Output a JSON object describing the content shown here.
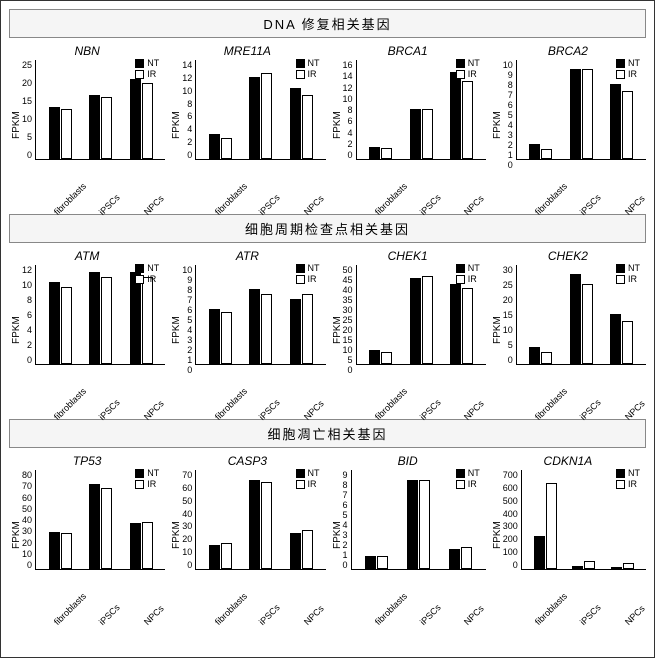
{
  "global": {
    "ylabel": "FPKM",
    "categories": [
      "fibroblasts",
      "iPSCs",
      "NPCs"
    ],
    "legend": [
      "NT",
      "IR"
    ],
    "colors": {
      "NT": "#000000",
      "IR": "#ffffff",
      "border": "#000000"
    },
    "fonts": {
      "title_size": 12,
      "axis_size": 10,
      "tick_size": 9
    }
  },
  "sections": [
    {
      "title": "DNA 修复相关基因",
      "charts": [
        {
          "name": "NBN",
          "ymax": 25,
          "ystep": 5,
          "values_nt": [
            13,
            16,
            20
          ],
          "values_ir": [
            12.5,
            15.5,
            19
          ]
        },
        {
          "name": "MRE11A",
          "ymax": 14,
          "ystep": 2,
          "values_nt": [
            3.5,
            11.5,
            10
          ],
          "values_ir": [
            3,
            12,
            9
          ]
        },
        {
          "name": "BRCA1",
          "ymax": 16,
          "ystep": 2,
          "values_nt": [
            2,
            8,
            14
          ],
          "values_ir": [
            1.8,
            8,
            12.5
          ]
        },
        {
          "name": "BRCA2",
          "ymax": 10,
          "ystep": 1,
          "values_nt": [
            1.5,
            9,
            7.5
          ],
          "values_ir": [
            1,
            9,
            6.8
          ]
        }
      ]
    },
    {
      "title": "细胞周期检查点相关基因",
      "charts": [
        {
          "name": "ATM",
          "ymax": 12,
          "ystep": 2,
          "values_nt": [
            9.8,
            11,
            11
          ],
          "values_ir": [
            9.2,
            10.5,
            10.5
          ]
        },
        {
          "name": "ATR",
          "ymax": 10,
          "ystep": 1,
          "values_nt": [
            5.5,
            7.5,
            6.5
          ],
          "values_ir": [
            5.2,
            7,
            7
          ]
        },
        {
          "name": "CHEK1",
          "ymax": 50,
          "ystep": 5,
          "values_nt": [
            7,
            43,
            40
          ],
          "values_ir": [
            6,
            44,
            38
          ]
        },
        {
          "name": "CHEK2",
          "ymax": 30,
          "ystep": 5,
          "values_nt": [
            5,
            27,
            15
          ],
          "values_ir": [
            3.5,
            24,
            13
          ]
        }
      ]
    },
    {
      "title": "细胞凋亡相关基因",
      "charts": [
        {
          "name": "TP53",
          "ymax": 80,
          "ystep": 10,
          "values_nt": [
            30,
            68,
            37
          ],
          "values_ir": [
            29,
            65,
            38
          ]
        },
        {
          "name": "CASP3",
          "ymax": 70,
          "ystep": 10,
          "values_nt": [
            17,
            62,
            25
          ],
          "values_ir": [
            18,
            61,
            27
          ]
        },
        {
          "name": "BID",
          "ymax": 9,
          "ystep": 1,
          "values_nt": [
            1.2,
            8,
            1.8
          ],
          "values_ir": [
            1.2,
            8,
            2
          ]
        },
        {
          "name": "CDKN1A",
          "ymax": 700,
          "ystep": 100,
          "values_nt": [
            230,
            20,
            15
          ],
          "values_ir": [
            600,
            55,
            45
          ]
        }
      ]
    }
  ]
}
